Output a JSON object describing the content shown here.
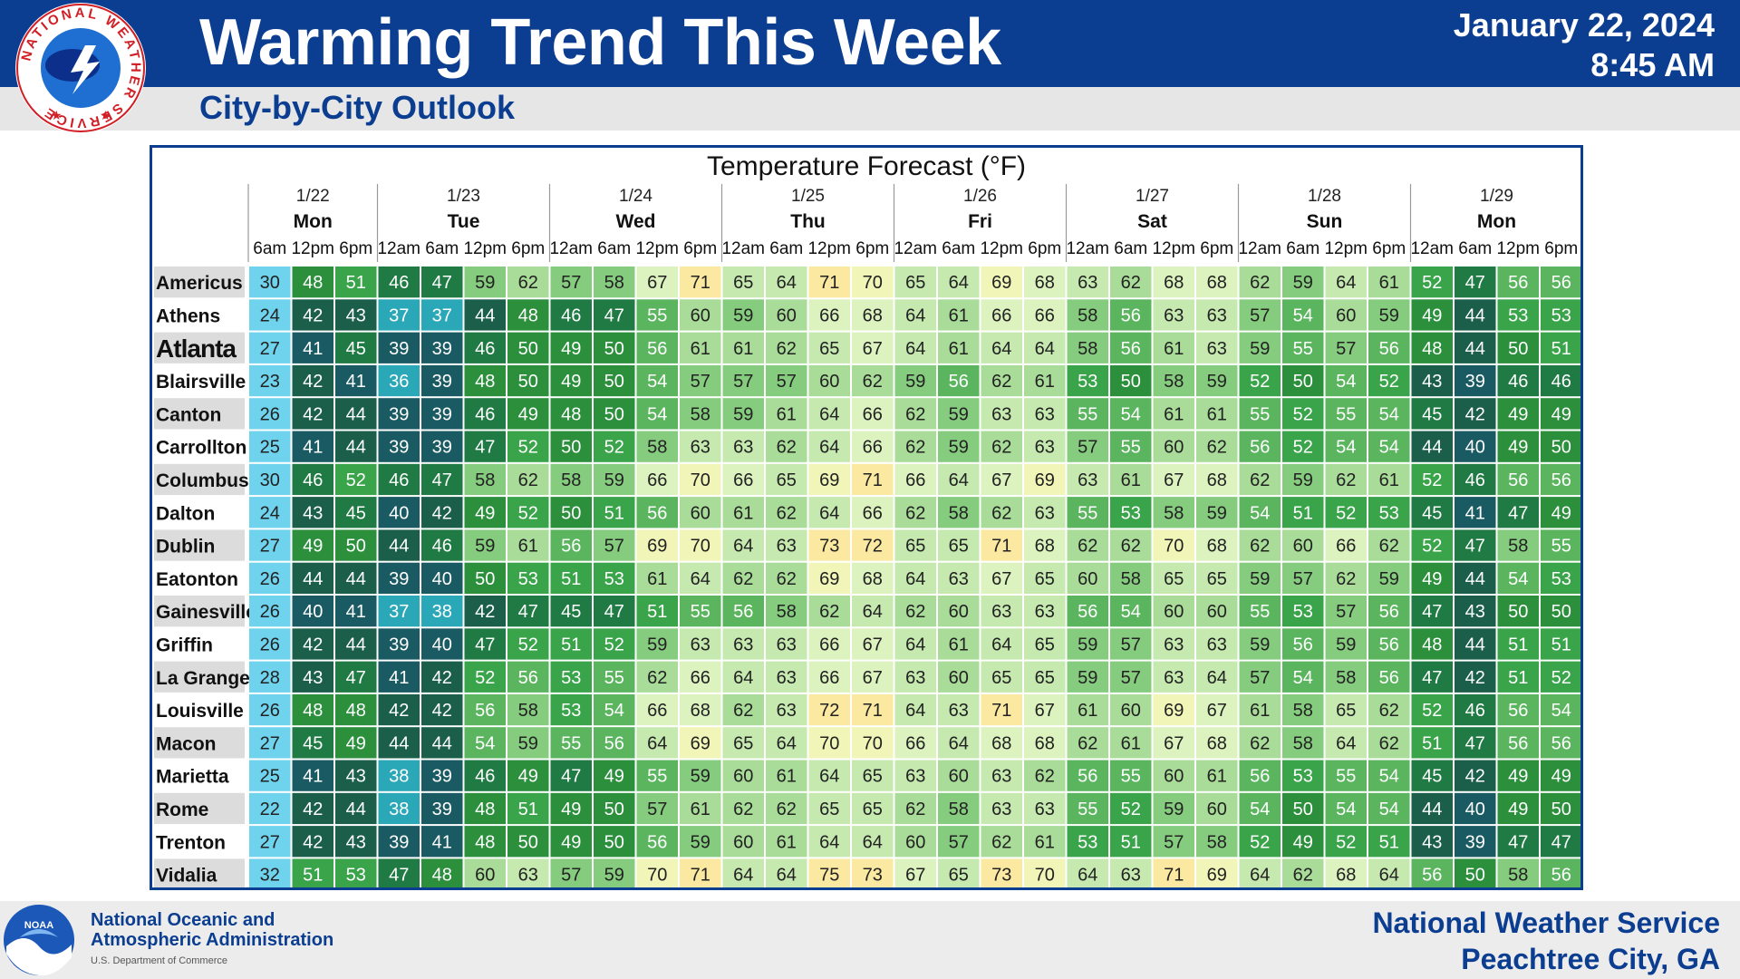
{
  "header": {
    "title": "Warming Trend This Week",
    "subtitle": "City-by-City Outlook",
    "date": "January 22, 2024",
    "time": "8:45 AM",
    "logo_ring_text": "NATIONAL WEATHER SERVICE"
  },
  "footer": {
    "noaa_line1": "National Oceanic and",
    "noaa_line2": "Atmospheric Administration",
    "noaa_line3": "U.S. Department of Commerce",
    "noaa_logo_text": "NOAA",
    "nws_line1": "National Weather Service",
    "nws_line2": "Peachtree City, GA"
  },
  "colors": {
    "brand_blue": "#0b3d91",
    "temp_scale": [
      "#19495a",
      "#1f6b48",
      "#2e8c42",
      "#5bb35b",
      "#8fd086",
      "#c0e6a8",
      "#e3f3b0",
      "#fbf1a8",
      "#fde8a0"
    ]
  },
  "chart_data": {
    "type": "table",
    "title": "Temperature Forecast (°F)",
    "days": [
      {
        "date": "1/22",
        "day": "Mon",
        "times": [
          "6am",
          "12pm",
          "6pm"
        ]
      },
      {
        "date": "1/23",
        "day": "Tue",
        "times": [
          "12am",
          "6am",
          "12pm",
          "6pm"
        ]
      },
      {
        "date": "1/24",
        "day": "Wed",
        "times": [
          "12am",
          "6am",
          "12pm",
          "6pm"
        ]
      },
      {
        "date": "1/25",
        "day": "Thu",
        "times": [
          "12am",
          "6am",
          "12pm",
          "6pm"
        ]
      },
      {
        "date": "1/26",
        "day": "Fri",
        "times": [
          "12am",
          "6am",
          "12pm",
          "6pm"
        ]
      },
      {
        "date": "1/27",
        "day": "Sat",
        "times": [
          "12am",
          "6am",
          "12pm",
          "6pm"
        ]
      },
      {
        "date": "1/28",
        "day": "Sun",
        "times": [
          "12am",
          "6am",
          "12pm",
          "6pm"
        ]
      },
      {
        "date": "1/29",
        "day": "Mon",
        "times": [
          "12am",
          "6am",
          "12pm",
          "6pm"
        ]
      }
    ],
    "rows": [
      {
        "city": "Americus",
        "values": [
          30,
          48,
          51,
          46,
          47,
          59,
          62,
          57,
          58,
          67,
          71,
          65,
          64,
          71,
          70,
          65,
          64,
          69,
          68,
          63,
          62,
          68,
          68,
          62,
          59,
          64,
          61,
          52,
          47,
          56,
          56
        ]
      },
      {
        "city": "Athens",
        "values": [
          24,
          42,
          43,
          37,
          37,
          44,
          48,
          46,
          47,
          55,
          60,
          59,
          60,
          66,
          68,
          64,
          61,
          66,
          66,
          58,
          56,
          63,
          63,
          57,
          54,
          60,
          59,
          49,
          44,
          53,
          53
        ]
      },
      {
        "city": "Atlanta",
        "values": [
          27,
          41,
          45,
          39,
          39,
          46,
          50,
          49,
          50,
          56,
          61,
          61,
          62,
          65,
          67,
          64,
          61,
          64,
          64,
          58,
          56,
          61,
          63,
          59,
          55,
          57,
          56,
          48,
          44,
          50,
          51
        ]
      },
      {
        "city": "Blairsville",
        "values": [
          23,
          42,
          41,
          36,
          39,
          48,
          50,
          49,
          50,
          54,
          57,
          57,
          57,
          60,
          62,
          59,
          56,
          62,
          61,
          53,
          50,
          58,
          59,
          52,
          50,
          54,
          52,
          43,
          39,
          46,
          46
        ]
      },
      {
        "city": "Canton",
        "values": [
          26,
          42,
          44,
          39,
          39,
          46,
          49,
          48,
          50,
          54,
          58,
          59,
          61,
          64,
          66,
          62,
          59,
          63,
          63,
          55,
          54,
          61,
          61,
          55,
          52,
          55,
          54,
          45,
          42,
          49,
          49
        ]
      },
      {
        "city": "Carrollton",
        "values": [
          25,
          41,
          44,
          39,
          39,
          47,
          52,
          50,
          52,
          58,
          63,
          63,
          62,
          64,
          66,
          62,
          59,
          62,
          63,
          57,
          55,
          60,
          62,
          56,
          52,
          54,
          54,
          44,
          40,
          49,
          50
        ]
      },
      {
        "city": "Columbus",
        "values": [
          30,
          46,
          52,
          46,
          47,
          58,
          62,
          58,
          59,
          66,
          70,
          66,
          65,
          69,
          71,
          66,
          64,
          67,
          69,
          63,
          61,
          67,
          68,
          62,
          59,
          62,
          61,
          52,
          46,
          56,
          56
        ]
      },
      {
        "city": "Dalton",
        "values": [
          24,
          43,
          45,
          40,
          42,
          49,
          52,
          50,
          51,
          56,
          60,
          61,
          62,
          64,
          66,
          62,
          58,
          62,
          63,
          55,
          53,
          58,
          59,
          54,
          51,
          52,
          53,
          45,
          41,
          47,
          49
        ]
      },
      {
        "city": "Dublin",
        "values": [
          27,
          49,
          50,
          44,
          46,
          59,
          61,
          56,
          57,
          69,
          70,
          64,
          63,
          73,
          72,
          65,
          65,
          71,
          68,
          62,
          62,
          70,
          68,
          62,
          60,
          66,
          62,
          52,
          47,
          58,
          55
        ]
      },
      {
        "city": "Eatonton",
        "values": [
          26,
          44,
          44,
          39,
          40,
          50,
          53,
          51,
          53,
          61,
          64,
          62,
          62,
          69,
          68,
          64,
          63,
          67,
          65,
          60,
          58,
          65,
          65,
          59,
          57,
          62,
          59,
          49,
          44,
          54,
          53
        ]
      },
      {
        "city": "Gainesville",
        "values": [
          26,
          40,
          41,
          37,
          38,
          42,
          47,
          45,
          47,
          51,
          55,
          56,
          58,
          62,
          64,
          62,
          60,
          63,
          63,
          56,
          54,
          60,
          60,
          55,
          53,
          57,
          56,
          47,
          43,
          50,
          50
        ]
      },
      {
        "city": "Griffin",
        "values": [
          26,
          42,
          44,
          39,
          40,
          47,
          52,
          51,
          52,
          59,
          63,
          63,
          63,
          66,
          67,
          64,
          61,
          64,
          65,
          59,
          57,
          63,
          63,
          59,
          56,
          59,
          56,
          48,
          44,
          51,
          51
        ]
      },
      {
        "city": "La Grange",
        "values": [
          28,
          43,
          47,
          41,
          42,
          52,
          56,
          53,
          55,
          62,
          66,
          64,
          63,
          66,
          67,
          63,
          60,
          65,
          65,
          59,
          57,
          63,
          64,
          57,
          54,
          58,
          56,
          47,
          42,
          51,
          52
        ]
      },
      {
        "city": "Louisville",
        "values": [
          26,
          48,
          48,
          42,
          42,
          56,
          58,
          53,
          54,
          66,
          68,
          62,
          63,
          72,
          71,
          64,
          63,
          71,
          67,
          61,
          60,
          69,
          67,
          61,
          58,
          65,
          62,
          52,
          46,
          56,
          54
        ]
      },
      {
        "city": "Macon",
        "values": [
          27,
          45,
          49,
          44,
          44,
          54,
          59,
          55,
          56,
          64,
          69,
          65,
          64,
          70,
          70,
          66,
          64,
          68,
          68,
          62,
          61,
          67,
          68,
          62,
          58,
          64,
          62,
          51,
          47,
          56,
          56
        ]
      },
      {
        "city": "Marietta",
        "values": [
          25,
          41,
          43,
          38,
          39,
          46,
          49,
          47,
          49,
          55,
          59,
          60,
          61,
          64,
          65,
          63,
          60,
          63,
          62,
          56,
          55,
          60,
          61,
          56,
          53,
          55,
          54,
          45,
          42,
          49,
          49
        ]
      },
      {
        "city": "Rome",
        "values": [
          22,
          42,
          44,
          38,
          39,
          48,
          51,
          49,
          50,
          57,
          61,
          62,
          62,
          65,
          65,
          62,
          58,
          63,
          63,
          55,
          52,
          59,
          60,
          54,
          50,
          54,
          54,
          44,
          40,
          49,
          50
        ]
      },
      {
        "city": "Trenton",
        "values": [
          27,
          42,
          43,
          39,
          41,
          48,
          50,
          49,
          50,
          56,
          59,
          60,
          61,
          64,
          64,
          60,
          57,
          62,
          61,
          53,
          51,
          57,
          58,
          52,
          49,
          52,
          51,
          43,
          39,
          47,
          47
        ]
      },
      {
        "city": "Vidalia",
        "values": [
          32,
          51,
          53,
          47,
          48,
          60,
          63,
          57,
          59,
          70,
          71,
          64,
          64,
          75,
          73,
          67,
          65,
          73,
          70,
          64,
          63,
          71,
          69,
          64,
          62,
          68,
          64,
          56,
          50,
          58,
          56
        ]
      }
    ]
  }
}
